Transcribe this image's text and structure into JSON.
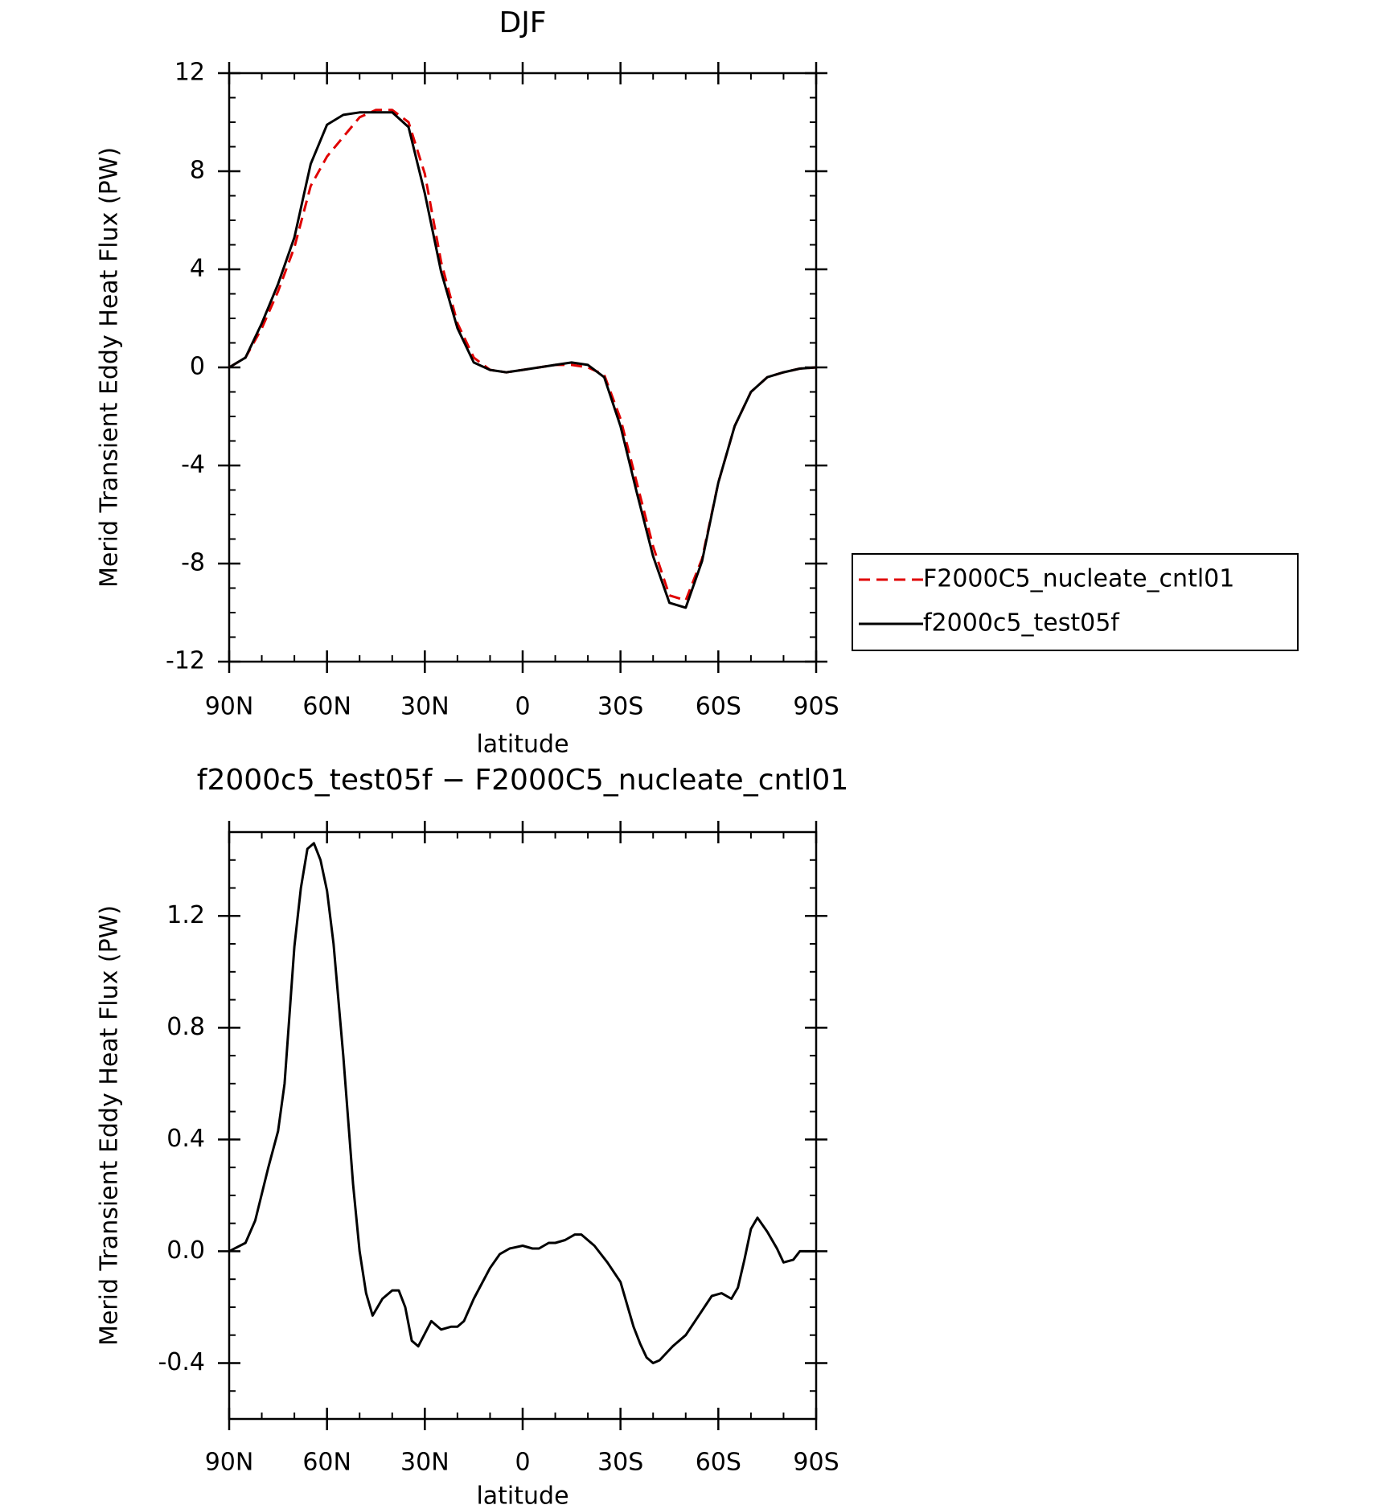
{
  "chart_data": [
    {
      "type": "line",
      "title": "DJF",
      "x_label": "latitude",
      "y_label": "Merid Transient Eddy Heat Flux (PW)",
      "xlim": [
        90,
        -90
      ],
      "xticks": [
        {
          "value": 90,
          "label": "90N"
        },
        {
          "value": 60,
          "label": "60N"
        },
        {
          "value": 30,
          "label": "30N"
        },
        0,
        {
          "value": -30,
          "label": "30S"
        },
        {
          "value": -60,
          "label": "60S"
        },
        {
          "value": -90,
          "label": "90S"
        }
      ],
      "ylim": [
        -12,
        12
      ],
      "yticks": [
        -12,
        -8,
        -4,
        0,
        4,
        8,
        12
      ],
      "legend": "right",
      "x": [
        90,
        85,
        80,
        75,
        70,
        65,
        60,
        55,
        50,
        45,
        40,
        35,
        30,
        25,
        20,
        15,
        10,
        5,
        0,
        -5,
        -10,
        -15,
        -20,
        -25,
        -30,
        -35,
        -40,
        -45,
        -50,
        -55,
        -60,
        -65,
        -70,
        -75,
        -80,
        -85,
        -90
      ],
      "series": [
        {
          "name": "F2000C5_nucleate_cntl01",
          "color": "#e00000",
          "line_style": "dashed",
          "values": [
            0,
            0.4,
            1.6,
            3.1,
            4.9,
            7.4,
            8.6,
            9.4,
            10.2,
            10.5,
            10.5,
            10.0,
            7.9,
            4.3,
            1.8,
            0.4,
            -0.1,
            -0.2,
            -0.1,
            0,
            0.1,
            0.1,
            0.0,
            -0.3,
            -2.1,
            -4.7,
            -7.3,
            -9.3,
            -9.5,
            -7.8,
            -4.7,
            -2.4,
            -1.0,
            -0.4,
            -0.2,
            -0.05,
            0
          ]
        },
        {
          "name": "f2000c5_test05f",
          "color": "#000000",
          "line_style": "solid",
          "values": [
            0,
            0.4,
            1.8,
            3.4,
            5.3,
            8.3,
            9.9,
            10.3,
            10.4,
            10.4,
            10.4,
            9.8,
            7.1,
            3.9,
            1.6,
            0.2,
            -0.1,
            -0.2,
            -0.1,
            0,
            0.1,
            0.2,
            0.1,
            -0.4,
            -2.4,
            -5.1,
            -7.7,
            -9.6,
            -9.8,
            -7.9,
            -4.7,
            -2.4,
            -1.0,
            -0.4,
            -0.2,
            -0.05,
            0
          ]
        }
      ]
    },
    {
      "type": "line",
      "title": "f2000c5_test05f − F2000C5_nucleate_cntl01",
      "x_label": "latitude",
      "y_label": "Merid Transient Eddy Heat Flux (PW)",
      "xlim": [
        90,
        -90
      ],
      "xticks": [
        {
          "value": 90,
          "label": "90N"
        },
        {
          "value": 60,
          "label": "60N"
        },
        {
          "value": 30,
          "label": "30N"
        },
        0,
        {
          "value": -30,
          "label": "30S"
        },
        {
          "value": -60,
          "label": "60S"
        },
        {
          "value": -90,
          "label": "90S"
        }
      ],
      "ylim": [
        -0.6,
        1.5
      ],
      "yticks": [
        -0.4,
        {
          "value": 0,
          "label": "0.0"
        },
        0.4,
        0.8,
        1.2
      ],
      "x": [
        90,
        85,
        82,
        78,
        75,
        73,
        70,
        68,
        66,
        64,
        62,
        60,
        58,
        55,
        52,
        50,
        48,
        46,
        43,
        40,
        38,
        36,
        34,
        32,
        28,
        25,
        22,
        20,
        18,
        15,
        10,
        7,
        4,
        0,
        -3,
        -5,
        -8,
        -10,
        -13,
        -16,
        -18,
        -22,
        -26,
        -30,
        -34,
        -36,
        -38,
        -40,
        -42,
        -46,
        -50,
        -54,
        -58,
        -61,
        -64,
        -66,
        -68,
        -70,
        -72,
        -75,
        -78,
        -80,
        -83,
        -85,
        -88,
        -90
      ],
      "series": [
        {
          "color": "#000000",
          "line_style": "solid",
          "values": [
            0,
            0.03,
            0.11,
            0.3,
            0.43,
            0.6,
            1.09,
            1.3,
            1.44,
            1.46,
            1.4,
            1.29,
            1.1,
            0.7,
            0.24,
            0.0,
            -0.15,
            -0.23,
            -0.17,
            -0.14,
            -0.14,
            -0.2,
            -0.32,
            -0.34,
            -0.25,
            -0.28,
            -0.27,
            -0.27,
            -0.25,
            -0.17,
            -0.06,
            -0.01,
            0.01,
            0.02,
            0.01,
            0.01,
            0.03,
            0.03,
            0.04,
            0.06,
            0.06,
            0.02,
            -0.04,
            -0.11,
            -0.27,
            -0.33,
            -0.38,
            -0.4,
            -0.39,
            -0.34,
            -0.3,
            -0.23,
            -0.16,
            -0.15,
            -0.17,
            -0.13,
            -0.03,
            0.08,
            0.12,
            0.07,
            0.01,
            -0.04,
            -0.03,
            0.0,
            0.0,
            0
          ]
        }
      ]
    }
  ]
}
